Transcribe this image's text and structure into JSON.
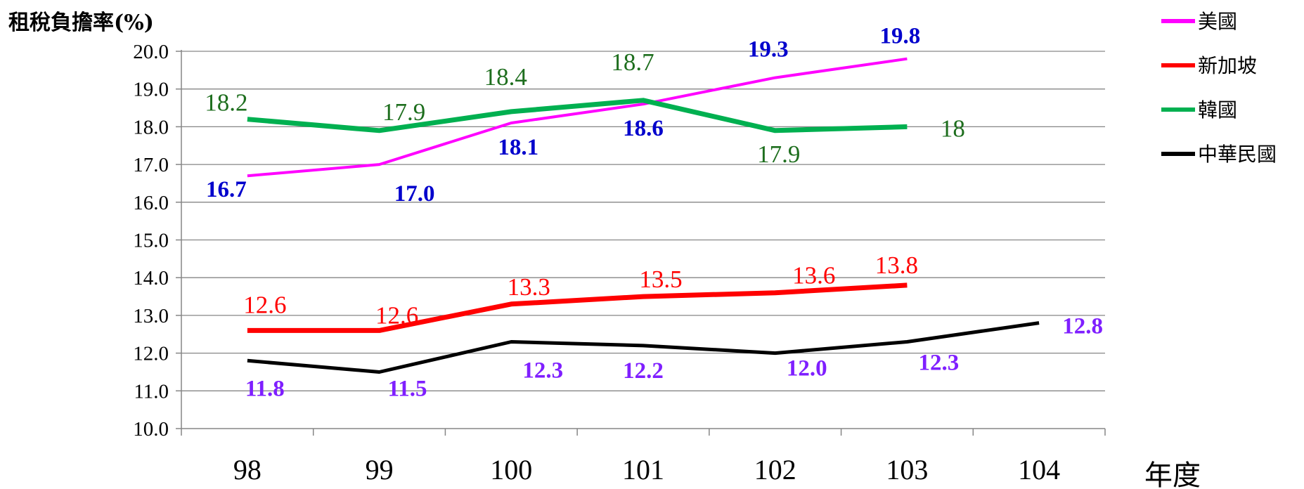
{
  "chart_data": {
    "type": "line",
    "ylabel": "租稅負擔率(%)",
    "xlabel": "年度",
    "categories": [
      "98",
      "99",
      "100",
      "101",
      "102",
      "103",
      "104"
    ],
    "ylim": [
      10.0,
      20.0
    ],
    "yticks": [
      "10.0",
      "11.0",
      "12.0",
      "13.0",
      "14.0",
      "15.0",
      "16.0",
      "17.0",
      "18.0",
      "19.0",
      "20.0"
    ],
    "grid": true,
    "legend_position": "right",
    "series": [
      {
        "name": "美國",
        "color": "#ff00ff",
        "label_color": "#0000cc",
        "label_bold": true,
        "values": [
          16.7,
          17.0,
          18.1,
          18.6,
          19.3,
          19.8,
          null
        ],
        "labels": [
          "16.7",
          "17.0",
          "18.1",
          "18.6",
          "19.3",
          "19.8",
          ""
        ]
      },
      {
        "name": "新加坡",
        "color": "#ff0000",
        "label_color": "#ff0000",
        "label_bold": false,
        "values": [
          12.6,
          12.6,
          13.3,
          13.5,
          13.6,
          13.8,
          null
        ],
        "labels": [
          "12.6",
          "12.6",
          "13.3",
          "13.5",
          "13.6",
          "13.8",
          ""
        ]
      },
      {
        "name": "韓國",
        "color": "#00b050",
        "label_color": "#1e6e1e",
        "label_bold": false,
        "values": [
          18.2,
          17.9,
          18.4,
          18.7,
          17.9,
          18.0,
          null
        ],
        "labels": [
          "18.2",
          "17.9",
          "18.4",
          "18.7",
          "17.9",
          "18",
          ""
        ]
      },
      {
        "name": "中華民國",
        "color": "#000000",
        "label_color": "#7f1fff",
        "label_bold": true,
        "values": [
          11.8,
          11.5,
          12.3,
          12.2,
          12.0,
          12.3,
          12.8
        ],
        "labels": [
          "11.8",
          "11.5",
          "12.3",
          "12.2",
          "12.0",
          "12.3",
          "12.8"
        ]
      }
    ]
  }
}
